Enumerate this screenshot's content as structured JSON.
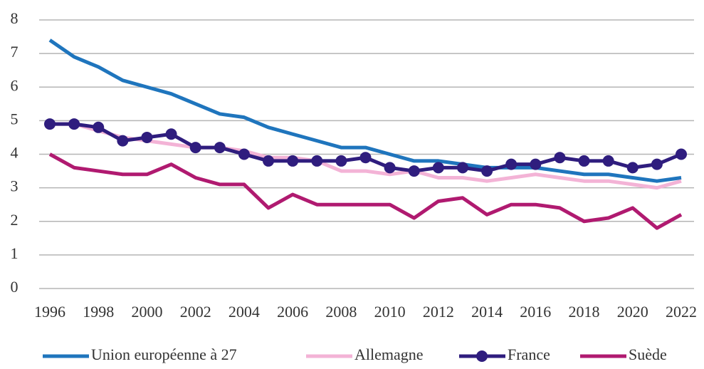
{
  "chart_data": {
    "type": "line",
    "x": [
      1996,
      1997,
      1998,
      1999,
      2000,
      2001,
      2002,
      2003,
      2004,
      2005,
      2006,
      2007,
      2008,
      2009,
      2010,
      2011,
      2012,
      2013,
      2014,
      2015,
      2016,
      2017,
      2018,
      2019,
      2020,
      2021,
      2022
    ],
    "series": [
      {
        "name": "Union européenne à 27",
        "color": "#1f75bd",
        "values": [
          7.4,
          6.9,
          6.6,
          6.2,
          6.0,
          5.8,
          5.5,
          5.2,
          5.1,
          4.8,
          4.6,
          4.4,
          4.2,
          4.2,
          4.0,
          3.8,
          3.8,
          3.7,
          3.6,
          3.6,
          3.6,
          3.5,
          3.4,
          3.4,
          3.3,
          3.2,
          3.3
        ]
      },
      {
        "name": "Allemagne",
        "color": "#f3b3d6",
        "values": [
          4.9,
          4.9,
          4.7,
          4.5,
          4.4,
          4.3,
          4.2,
          4.2,
          4.1,
          3.9,
          3.9,
          3.8,
          3.5,
          3.5,
          3.4,
          3.5,
          3.3,
          3.3,
          3.2,
          3.3,
          3.4,
          3.3,
          3.2,
          3.2,
          3.1,
          3.0,
          3.2
        ]
      },
      {
        "name": "France",
        "color": "#2f1d7e",
        "markers": true,
        "values": [
          4.9,
          4.9,
          4.8,
          4.4,
          4.5,
          4.6,
          4.2,
          4.2,
          4.0,
          3.8,
          3.8,
          3.8,
          3.8,
          3.9,
          3.6,
          3.5,
          3.6,
          3.6,
          3.5,
          3.7,
          3.7,
          3.9,
          3.8,
          3.8,
          3.6,
          3.7,
          4.0
        ]
      },
      {
        "name": "Suède",
        "color": "#b01a70",
        "values": [
          4.0,
          3.6,
          3.5,
          3.4,
          3.4,
          3.7,
          3.3,
          3.1,
          3.1,
          2.4,
          2.8,
          2.5,
          2.5,
          2.5,
          2.5,
          2.1,
          2.6,
          2.7,
          2.2,
          2.5,
          2.5,
          2.4,
          2.0,
          2.1,
          2.4,
          1.8,
          2.2
        ]
      }
    ],
    "xlim": [
      1996,
      2022
    ],
    "xticks": [
      1996,
      1998,
      2000,
      2002,
      2004,
      2006,
      2008,
      2010,
      2012,
      2014,
      2016,
      2018,
      2020,
      2022
    ],
    "ylim": [
      0,
      8
    ],
    "yticks": [
      0,
      1,
      2,
      3,
      4,
      5,
      6,
      7,
      8
    ],
    "grid": true,
    "legend": "bottom"
  }
}
